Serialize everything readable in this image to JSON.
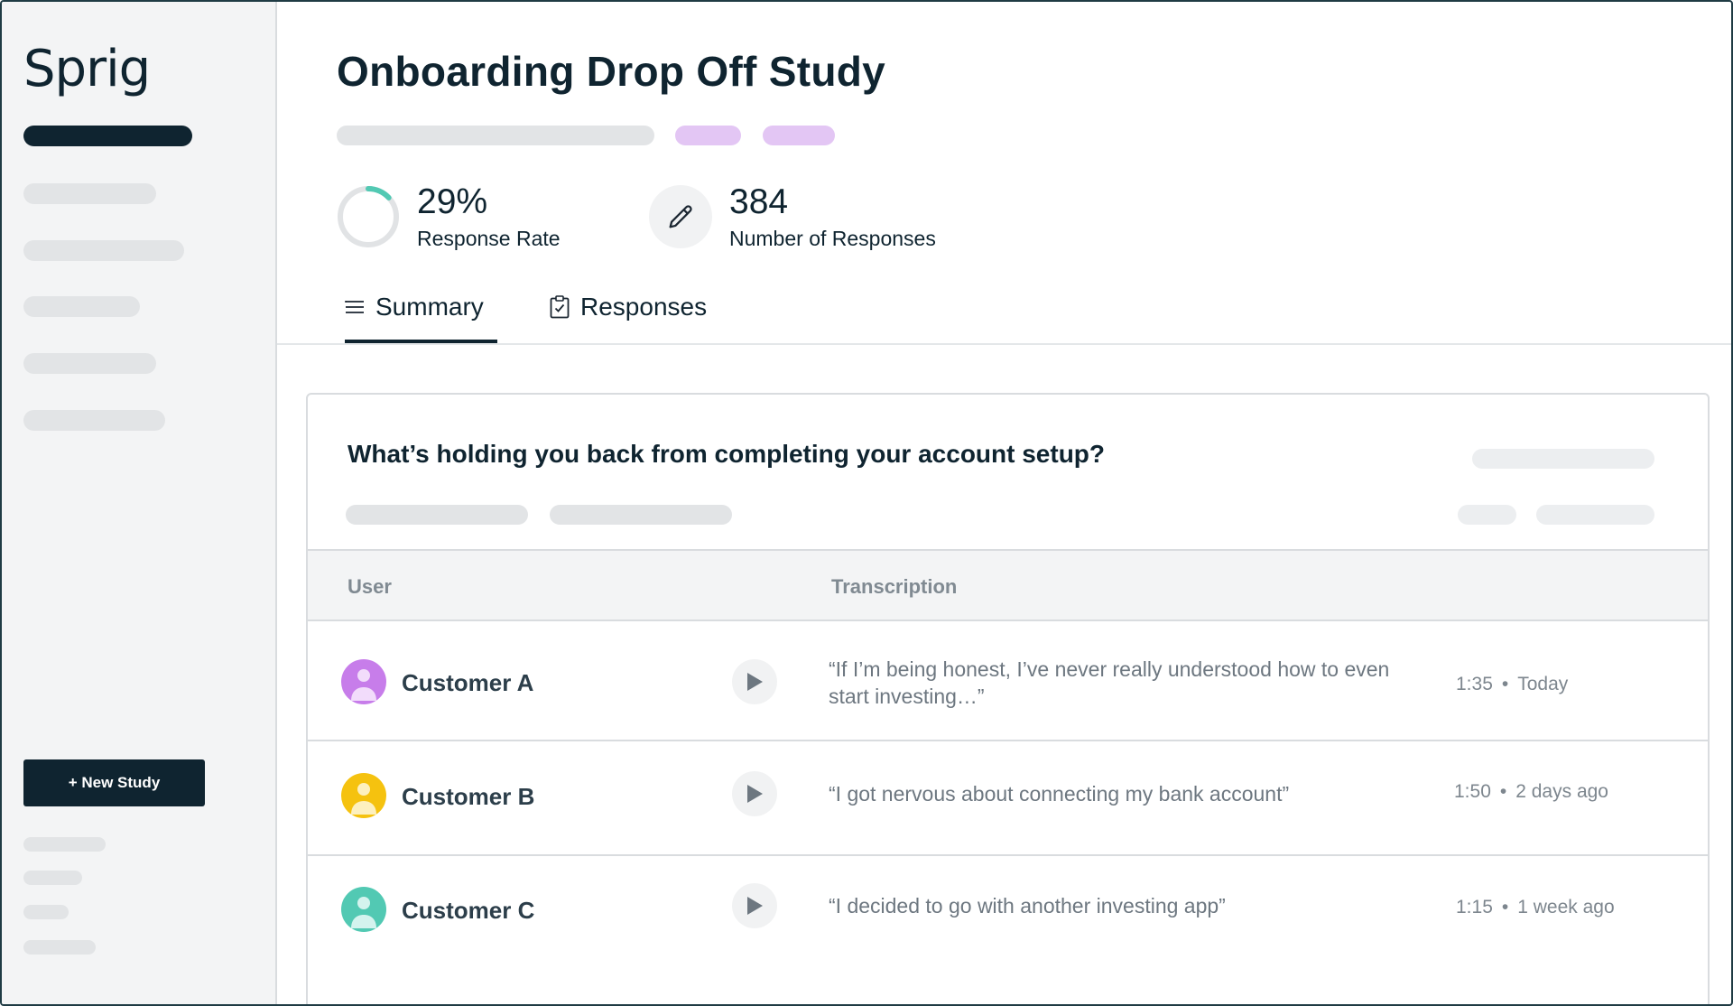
{
  "sidebar": {
    "logo": "Sprig",
    "new_study_label": "+ New Study"
  },
  "study": {
    "title": "Onboarding Drop Off Study",
    "response_rate": {
      "value": "29%",
      "label": "Response Rate",
      "fraction": 0.29
    },
    "responses": {
      "value": "384",
      "label": "Number of Responses"
    }
  },
  "tabs": [
    {
      "label": "Summary",
      "icon": "list-icon",
      "active": true
    },
    {
      "label": "Responses",
      "icon": "clipboard-check-icon",
      "active": false
    }
  ],
  "card": {
    "question": "What’s holding you back from completing your account setup?",
    "columns": {
      "user": "User",
      "transcription": "Transcription"
    },
    "rows": [
      {
        "name": "Customer A",
        "avatar_color": "#c77dea",
        "quote": "“If I’m being honest, I’ve never really understood how to even start investing…”",
        "duration": "1:35",
        "when": "Today"
      },
      {
        "name": "Customer B",
        "avatar_color": "#f5c20f",
        "quote": "“I got nervous about connecting my bank account”",
        "duration": "1:50",
        "when": "2 days ago"
      },
      {
        "name": "Customer C",
        "avatar_color": "#52c9b3",
        "quote": "“I decided to go with another investing app”",
        "duration": "1:15",
        "when": "1 week ago"
      }
    ]
  },
  "colors": {
    "brand_dark": "#0f2430",
    "tag_purple": "#e3c6f4",
    "ring_accent": "#52c9b3"
  }
}
